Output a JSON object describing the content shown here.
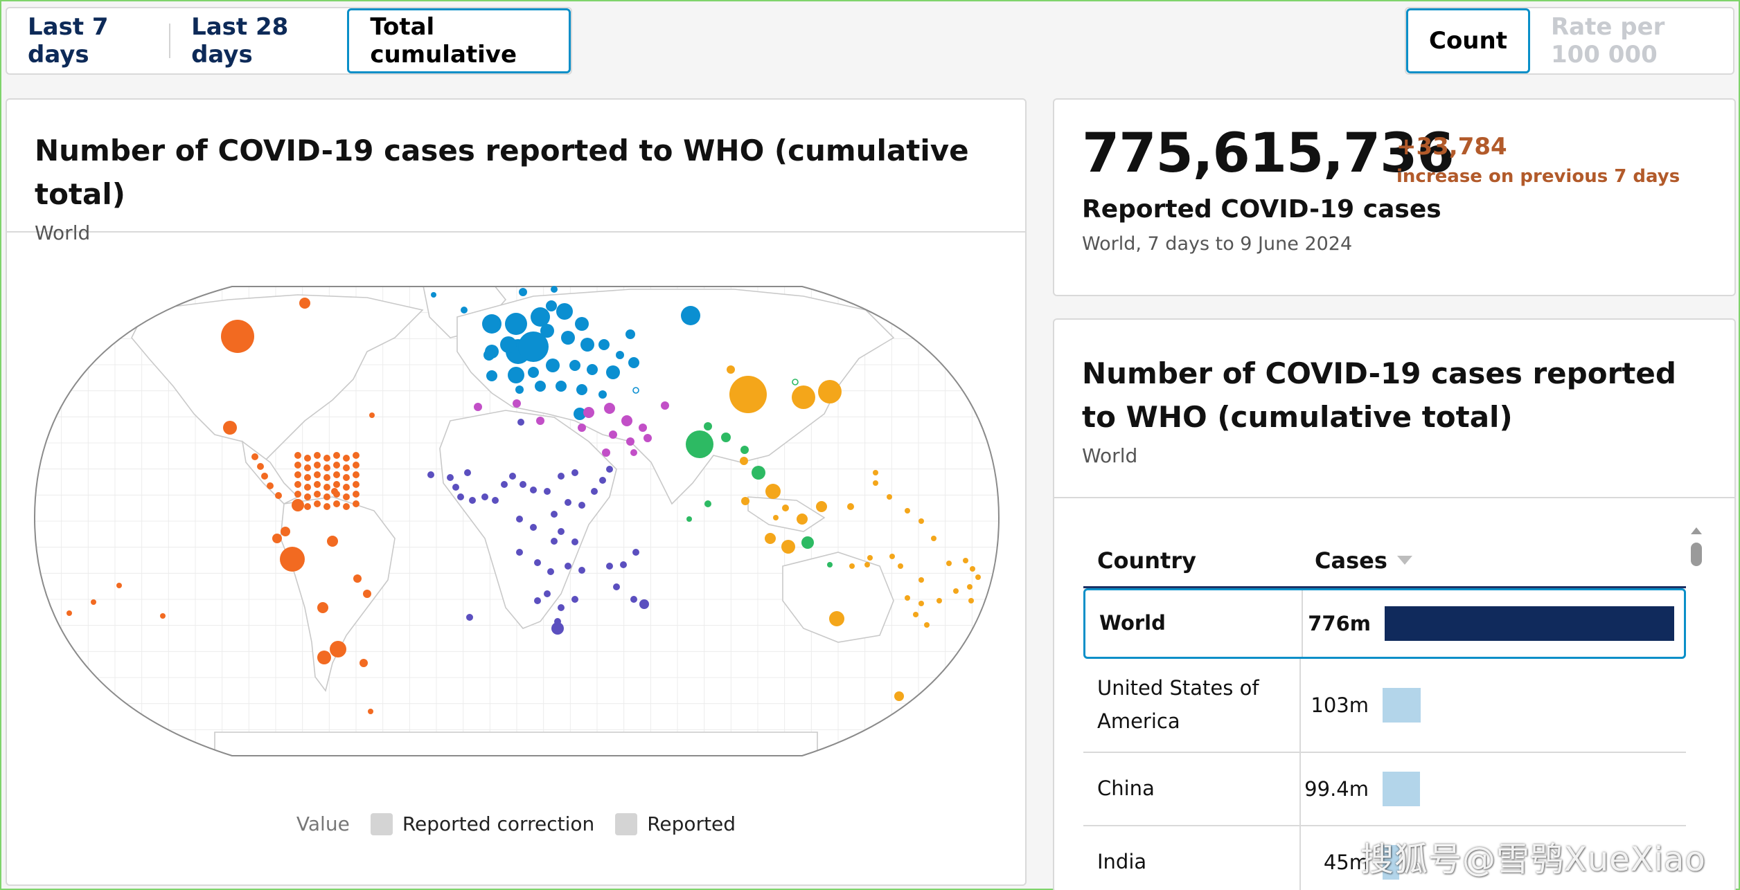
{
  "period_tabs": [
    "Last 7 days",
    "Last 28 days",
    "Total cumulative"
  ],
  "active_period": "Total cumulative",
  "metric_tabs": [
    "Count",
    "Rate per 100 000"
  ],
  "active_metric": "Count",
  "map_panel": {
    "title": "Number of COVID-19 cases reported to WHO (cumulative total)",
    "subtitle": "World",
    "legend": {
      "label": "Value",
      "items": [
        "Reported correction",
        "Reported"
      ]
    }
  },
  "summary": {
    "total": "775,615,736",
    "delta": "+33,784",
    "delta_text": "increase on previous 7 days",
    "label": "Reported COVID-19 cases",
    "period": "World, 7 days to 9 June 2024"
  },
  "table_panel": {
    "title": "Number of COVID-19 cases reported to WHO (cumulative total)",
    "subtitle": "World",
    "columns": [
      "Country",
      "Cases"
    ],
    "rows": [
      {
        "country": "World",
        "cases": "776m",
        "value": 776
      },
      {
        "country": "United States of America",
        "cases": "103m",
        "value": 103
      },
      {
        "country": "China",
        "cases": "99.4m",
        "value": 99.4
      },
      {
        "country": "India",
        "cases": "45m",
        "value": 45
      }
    ]
  },
  "region_colors": {
    "americas": "#f26a21",
    "europe": "#0b8fd1",
    "eastern_mediterranean": "#c24fc7",
    "africa": "#5b4fbf",
    "south_east_asia": "#2dba63",
    "western_pacific": "#f4a61a"
  },
  "watermark": "搜狐号@雪鸮XueXiao"
}
